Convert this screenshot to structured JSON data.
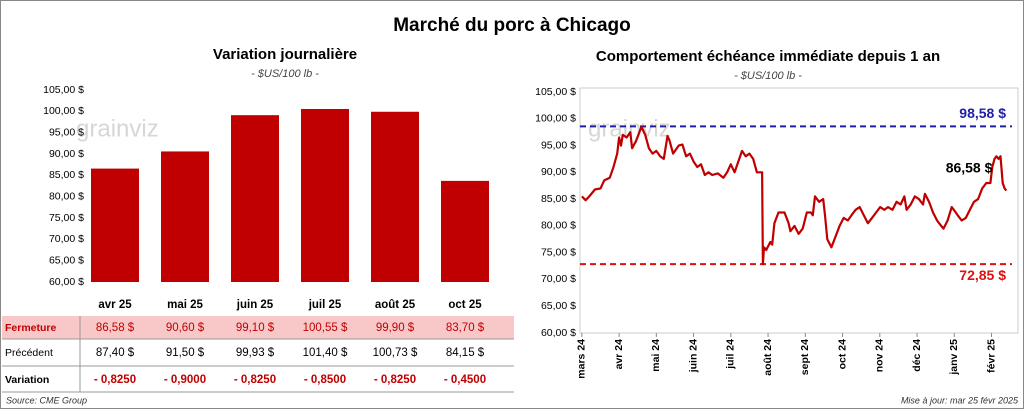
{
  "title": "Marché du porc à Chicago",
  "source": "Source: CME Group",
  "updated": "Mise à jour: mar 25 févr 2025",
  "watermark": "grainviz",
  "chart_data": [
    {
      "type": "bar",
      "title": "Variation journalière",
      "subtitle": "- $US/100 lb -",
      "categories": [
        "avr 25",
        "mai 25",
        "juin 25",
        "juil 25",
        "août 25",
        "oct 25"
      ],
      "values": [
        86.58,
        90.6,
        99.1,
        100.55,
        99.9,
        83.7
      ],
      "value_labels": [
        "86,58  $",
        "90,60  $",
        "99,10  $",
        "100,55  $",
        "99,90  $",
        "83,70  $"
      ],
      "value_row_label": "Fermeture",
      "color": "#c00000",
      "ylim": [
        60,
        105
      ],
      "yticks": [
        {
          "value": 60,
          "label": "60,00 $"
        },
        {
          "value": 65,
          "label": "65,00 $"
        },
        {
          "value": 70,
          "label": "70,00 $"
        },
        {
          "value": 75,
          "label": "75,00 $"
        },
        {
          "value": 80,
          "label": "80,00 $"
        },
        {
          "value": 85,
          "label": "85,00 $"
        },
        {
          "value": 90,
          "label": "90,00 $"
        },
        {
          "value": 95,
          "label": "95,00 $"
        },
        {
          "value": 100,
          "label": "100,00 $"
        },
        {
          "value": 105,
          "label": "105,00 $"
        }
      ],
      "table_rows": [
        {
          "label": "Précédent",
          "cells": [
            "87,40  $",
            "91,50  $",
            "99,93  $",
            "101,40  $",
            "100,73  $",
            "84,15  $"
          ]
        },
        {
          "label": "Variation",
          "cells": [
            "- 0,8250",
            "- 0,9000",
            "- 0,8250",
            "- 0,8500",
            "- 0,8250",
            "- 0,4500"
          ]
        }
      ]
    },
    {
      "type": "line",
      "title": "Comportement échéance immédiate depuis 1 an",
      "subtitle": "- $US/100 lb -",
      "xlim": [
        -0.05,
        11.55
      ],
      "xticks": [
        {
          "value": 0,
          "label": "mars 24"
        },
        {
          "value": 1,
          "label": "avr 24"
        },
        {
          "value": 2,
          "label": "mai 24"
        },
        {
          "value": 3,
          "label": "juin 24"
        },
        {
          "value": 4,
          "label": "juil 24"
        },
        {
          "value": 5,
          "label": "août 24"
        },
        {
          "value": 6,
          "label": "sept 24"
        },
        {
          "value": 7,
          "label": "oct 24"
        },
        {
          "value": 8,
          "label": "nov 24"
        },
        {
          "value": 9,
          "label": "déc 24"
        },
        {
          "value": 10,
          "label": "janv 25"
        },
        {
          "value": 11,
          "label": "févr 25"
        }
      ],
      "ylim": [
        60,
        105
      ],
      "yticks": [
        {
          "value": 60,
          "label": "60,00 $"
        },
        {
          "value": 65,
          "label": "65,00 $"
        },
        {
          "value": 70,
          "label": "70,00 $"
        },
        {
          "value": 75,
          "label": "75,00 $"
        },
        {
          "value": 80,
          "label": "80,00 $"
        },
        {
          "value": 85,
          "label": "85,00 $"
        },
        {
          "value": 90,
          "label": "90,00 $"
        },
        {
          "value": 95,
          "label": "95,00 $"
        },
        {
          "value": 100,
          "label": "100,00 $"
        },
        {
          "value": 105,
          "label": "105,00 $"
        }
      ],
      "x": [
        0,
        0.1,
        0.2,
        0.35,
        0.5,
        0.6,
        0.75,
        0.85,
        0.95,
        1.0,
        1.05,
        1.1,
        1.2,
        1.3,
        1.35,
        1.45,
        1.6,
        1.7,
        1.8,
        1.9,
        2.0,
        2.1,
        2.2,
        2.3,
        2.35,
        2.45,
        2.6,
        2.7,
        2.8,
        2.9,
        3.0,
        3.1,
        3.2,
        3.3,
        3.4,
        3.5,
        3.65,
        3.8,
        3.9,
        4.0,
        4.1,
        4.2,
        4.3,
        4.4,
        4.5,
        4.6,
        4.7,
        4.84,
        4.86,
        4.89,
        4.95,
        5.06,
        5.11,
        5.17,
        5.28,
        5.44,
        5.55,
        5.6,
        5.71,
        5.82,
        5.93,
        6.04,
        6.15,
        6.2,
        6.26,
        6.37,
        6.48,
        6.53,
        6.59,
        6.7,
        6.81,
        6.92,
        7.03,
        7.14,
        7.24,
        7.35,
        7.46,
        7.57,
        7.68,
        7.79,
        7.9,
        8.01,
        8.12,
        8.22,
        8.34,
        8.45,
        8.56,
        8.66,
        8.72,
        8.83,
        8.94,
        9.05,
        9.16,
        9.21,
        9.32,
        9.43,
        9.54,
        9.65,
        9.71,
        9.82,
        9.93,
        10.04,
        10.09,
        10.2,
        10.31,
        10.42,
        10.53,
        10.64,
        10.75,
        10.86,
        10.97,
        11.02,
        11.08,
        11.13,
        11.19,
        11.24,
        11.3,
        11.35,
        11.4
      ],
      "series": [
        {
          "name": "Échéance immédiate",
          "color": "#c00000",
          "values": [
            85.5,
            84.8,
            85.5,
            86.8,
            87,
            88.5,
            89,
            91,
            93.5,
            96.5,
            95,
            97,
            96.5,
            97.5,
            94.5,
            95.8,
            98.5,
            97,
            94.5,
            93.5,
            94,
            93,
            92.5,
            96.8,
            96,
            93.5,
            95,
            95.2,
            93,
            93.5,
            92,
            91,
            91.5,
            89.5,
            90,
            89.5,
            89.8,
            89,
            90,
            91.5,
            90,
            92,
            94,
            93,
            93.5,
            92.5,
            90,
            90,
            72.85,
            76,
            75.5,
            77,
            76.5,
            80.5,
            82.5,
            82.5,
            80.5,
            79,
            80,
            78.5,
            79.5,
            82.5,
            82.5,
            82,
            85.5,
            84.5,
            85,
            82,
            77.5,
            76,
            78,
            80,
            81.5,
            81,
            82,
            83,
            83.5,
            82,
            80.5,
            81.5,
            82.5,
            83.5,
            83,
            83.5,
            83,
            84.5,
            84,
            85.5,
            83,
            84,
            85.5,
            85,
            84,
            86,
            84.5,
            82.5,
            81,
            80,
            79.5,
            81,
            83.5,
            82.5,
            82,
            81,
            81.5,
            83,
            84.5,
            85,
            87,
            88,
            88,
            91,
            92.5,
            93,
            92.5,
            93,
            88,
            87,
            86.58
          ]
        }
      ],
      "end_label": "86,58 $",
      "ref_lines": [
        {
          "value": 98.58,
          "label": "98,58 $",
          "color": "#1f1fa8"
        },
        {
          "value": 72.85,
          "label": "72,85 $",
          "color": "#e01010"
        }
      ]
    }
  ]
}
